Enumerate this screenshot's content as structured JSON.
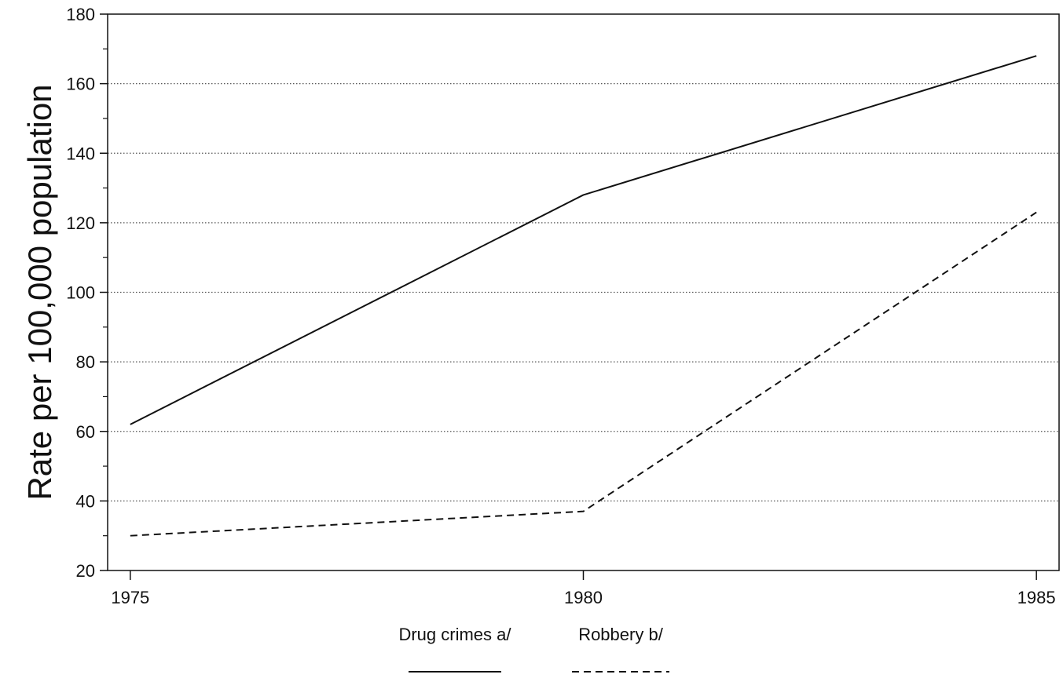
{
  "chart_data": {
    "type": "line",
    "title": "",
    "xlabel": "",
    "ylabel": "Rate per 100,000 population",
    "x": [
      1975,
      1980,
      1985
    ],
    "x_ticks": [
      "1975",
      "1980",
      "1985"
    ],
    "y_ticks": [
      "20",
      "40",
      "60",
      "80",
      "100",
      "120",
      "140",
      "160",
      "180"
    ],
    "xlim": [
      1974.75,
      1985.25
    ],
    "ylim": [
      20,
      180
    ],
    "grid": "horizontal dotted",
    "legend_position": "bottom-center",
    "series": [
      {
        "name": "Drug crimes a/",
        "values": [
          62,
          128,
          168
        ],
        "line_style": "solid",
        "color": "#111111"
      },
      {
        "name": "Robbery b/",
        "values": [
          30,
          37,
          123
        ],
        "line_style": "dashed",
        "color": "#111111"
      }
    ]
  }
}
